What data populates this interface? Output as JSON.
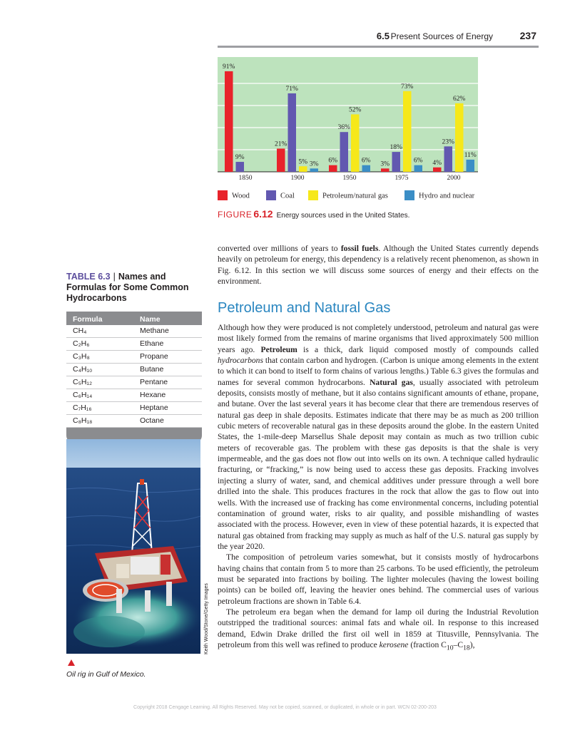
{
  "header": {
    "section_number": "6.5",
    "section_title": "Present Sources of Energy",
    "page_number": "237"
  },
  "figure": {
    "label": "FIGURE",
    "number": "6.12",
    "caption": "Energy sources used in the United States."
  },
  "chart_data": {
    "type": "bar",
    "categories": [
      "1850",
      "1900",
      "1950",
      "1975",
      "2000"
    ],
    "series": [
      {
        "name": "Wood",
        "color": "#e8232b",
        "values": [
          91,
          21,
          6,
          3,
          4
        ]
      },
      {
        "name": "Coal",
        "color": "#6258b0",
        "values": [
          9,
          71,
          36,
          18,
          23
        ]
      },
      {
        "name": "Petroleum/natural gas",
        "color": "#f6e81a",
        "values": [
          null,
          5,
          52,
          73,
          62
        ]
      },
      {
        "name": "Hydro and nuclear",
        "color": "#3b8ec6",
        "values": [
          null,
          3,
          6,
          6,
          11
        ]
      }
    ],
    "data_labels": [
      [
        "91%",
        "9%",
        null,
        null
      ],
      [
        "21%",
        "71%",
        "5%",
        "3%"
      ],
      [
        "6%",
        "36%",
        "52%",
        "6%"
      ],
      [
        "3%",
        "18%",
        "73%",
        "6%"
      ],
      [
        "4%",
        "23%",
        "62%",
        "11%"
      ]
    ],
    "ylim": [
      0,
      100
    ],
    "grid": true,
    "background": "#bde3bd",
    "legend_placement": "bottom"
  },
  "table": {
    "label": "TABLE 6.3",
    "title": "Names and Formulas for Some Common Hydrocarbons",
    "columns": [
      "Formula",
      "Name"
    ],
    "rows": [
      {
        "formula": "CH₄",
        "name": "Methane"
      },
      {
        "formula": "C₂H₆",
        "name": "Ethane"
      },
      {
        "formula": "C₃H₈",
        "name": "Propane"
      },
      {
        "formula": "C₄H₁₀",
        "name": "Butane"
      },
      {
        "formula": "C₅H₁₂",
        "name": "Pentane"
      },
      {
        "formula": "C₆H₁₄",
        "name": "Hexane"
      },
      {
        "formula": "C₇H₁₆",
        "name": "Heptane"
      },
      {
        "formula": "C₈H₁₈",
        "name": "Octane"
      }
    ]
  },
  "photo": {
    "credit": "Keith Wood/Stone/Getty Images",
    "caption": "Oil rig in Gulf of Mexico."
  },
  "intro": {
    "t1": "converted over millions of years to ",
    "b1": "fossil fuels",
    "t2": ". Although the United States currently depends heavily on petroleum for energy, this dependency is a relatively recent phenomenon, as shown in Fig. 6.12. In this section we will discuss some sources of energy and their effects on the environment."
  },
  "section_heading": "Petroleum and Natural Gas",
  "para1": {
    "t1": "Although how they were produced is not completely understood, petroleum and natural gas were most likely formed from the remains of marine organisms that lived approximately 500 million years ago. ",
    "b1": "Petroleum",
    "t2": " is a thick, dark liquid composed mostly of compounds called ",
    "i1": "hydrocarbons",
    "t3": " that contain carbon and hydrogen. (Carbon is unique among elements in the extent to which it can bond to itself to form chains of various lengths.) Table 6.3 gives the formulas and names for several common hydrocarbons. ",
    "b2": "Natural gas",
    "t4": ", usually associated with petroleum deposits, consists mostly of methane, but it also contains significant amounts of ethane, propane, and butane. Over the last several years it has become clear that there are tremendous reserves of natural gas deep in shale deposits. Estimates indicate that there may be as much as 200 trillion cubic meters of recoverable natural gas in these deposits around the globe. In the eastern United States, the 1-mile-deep Marsellus Shale deposit may contain as much as two trillion cubic meters of recoverable gas. The problem with these gas deposits is that the shale is very impermeable, and the gas does not flow out into wells on its own. A technique called hydraulic fracturing, or “fracking,” is now being used to access these gas deposits. Fracking involves injecting a slurry of water, sand, and chemical additives under pressure through a well bore drilled into the shale. This produces fractures in the rock that allow the gas to flow out into wells. With the increased use of fracking has come environmental concerns, including potential contamination of ground water, risks to air quality, and possible mishandling of wastes associated with the process. However, even in view of these potential hazards, it is expected that natural gas obtained from fracking may supply as much as half of the U.S. natural gas supply by the year 2020."
  },
  "para2": "The composition of petroleum varies somewhat, but it consists mostly of hydrocarbons having chains that contain from 5 to more than 25 carbons. To be used efficiently, the petroleum must be separated into fractions by boiling. The lighter molecules (having the lowest boiling points) can be boiled off, leaving the heavier ones behind. The commercial uses of various petroleum fractions are shown in Table 6.4.",
  "para3": {
    "t1": "The petroleum era began when the demand for lamp oil during the Industrial Revolution outstripped the traditional sources: animal fats and whale oil. In response to this increased demand, Edwin Drake drilled the first oil well in 1859 at Titusville, Pennsylvania. The petroleum from this well was refined to produce ",
    "i1": "kerosene",
    "t2": " (fraction C",
    "s1": "10",
    "t3": "–C",
    "s2": "18",
    "t4": "),"
  },
  "footer": "Copyright 2018 Cengage Learning. All Rights Reserved. May not be copied, scanned, or duplicated, in whole or in part.  WCN 02-200-203"
}
